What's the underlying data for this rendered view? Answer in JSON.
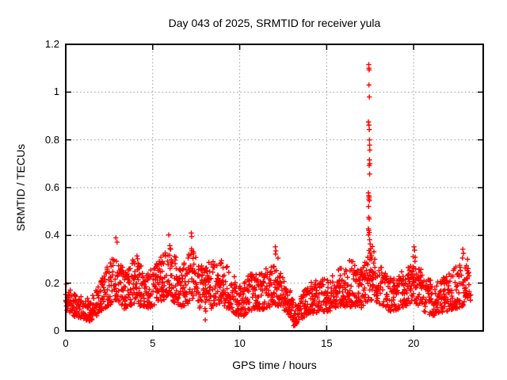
{
  "colors": {
    "marker": "#ff0000",
    "grid": "#9a9a9a",
    "axis": "#000000",
    "text": "#000000",
    "background": "#ffffff"
  },
  "chart_data": {
    "type": "scatter",
    "marker": "plus",
    "title": "Day 043 of 2025, SRMTID for receiver yula",
    "xlabel": "GPS time / hours",
    "ylabel": "SRMTID / TECUs",
    "series_name": "SRMTID",
    "xlim": [
      0,
      24
    ],
    "ylim": [
      0,
      1.2
    ],
    "xticks": [
      0,
      5,
      10,
      15,
      20
    ],
    "xtick_labels": [
      "0",
      "5",
      "10",
      "15",
      "20"
    ],
    "yticks": [
      0,
      0.2,
      0.4,
      0.6,
      0.8,
      1,
      1.2
    ],
    "ytick_labels": [
      "0",
      "0.2",
      "0.4",
      "0.6",
      "0.8",
      "1",
      "1.2"
    ],
    "grid": true,
    "legend": "none",
    "t_start": 0,
    "t_end": 23.3,
    "epoch_step": 0.025,
    "seed": 2025043,
    "band_envelope": [
      [
        0.0,
        0.08,
        0.2
      ],
      [
        0.4,
        0.06,
        0.16
      ],
      [
        0.9,
        0.05,
        0.15
      ],
      [
        1.4,
        0.04,
        0.14
      ],
      [
        1.9,
        0.07,
        0.2
      ],
      [
        2.4,
        0.1,
        0.27
      ],
      [
        2.9,
        0.13,
        0.33
      ],
      [
        3.2,
        0.1,
        0.28
      ],
      [
        3.5,
        0.08,
        0.24
      ],
      [
        3.8,
        0.11,
        0.3
      ],
      [
        4.1,
        0.11,
        0.32
      ],
      [
        4.5,
        0.09,
        0.24
      ],
      [
        4.9,
        0.1,
        0.26
      ],
      [
        5.4,
        0.12,
        0.3
      ],
      [
        5.9,
        0.14,
        0.38
      ],
      [
        6.2,
        0.12,
        0.33
      ],
      [
        6.6,
        0.1,
        0.27
      ],
      [
        7.0,
        0.11,
        0.3
      ],
      [
        7.25,
        0.12,
        0.38
      ],
      [
        7.6,
        0.1,
        0.27
      ],
      [
        8.1,
        0.08,
        0.28
      ],
      [
        8.65,
        0.11,
        0.33
      ],
      [
        9.1,
        0.1,
        0.29
      ],
      [
        9.6,
        0.08,
        0.24
      ],
      [
        10.1,
        0.05,
        0.18
      ],
      [
        10.55,
        0.08,
        0.24
      ],
      [
        11.0,
        0.09,
        0.24
      ],
      [
        11.5,
        0.09,
        0.26
      ],
      [
        12.0,
        0.11,
        0.29
      ],
      [
        12.5,
        0.09,
        0.23
      ],
      [
        12.9,
        0.06,
        0.17
      ],
      [
        13.15,
        0.02,
        0.12
      ],
      [
        13.6,
        0.05,
        0.16
      ],
      [
        14.1,
        0.07,
        0.21
      ],
      [
        14.6,
        0.08,
        0.22
      ],
      [
        15.1,
        0.08,
        0.23
      ],
      [
        15.6,
        0.1,
        0.25
      ],
      [
        16.1,
        0.1,
        0.29
      ],
      [
        16.5,
        0.1,
        0.3
      ],
      [
        16.9,
        0.09,
        0.25
      ],
      [
        17.2,
        0.11,
        0.3
      ],
      [
        17.45,
        0.13,
        0.4
      ],
      [
        17.8,
        0.12,
        0.32
      ],
      [
        18.2,
        0.1,
        0.26
      ],
      [
        18.7,
        0.08,
        0.22
      ],
      [
        19.2,
        0.09,
        0.24
      ],
      [
        19.7,
        0.11,
        0.28
      ],
      [
        20.0,
        0.12,
        0.33
      ],
      [
        20.3,
        0.1,
        0.28
      ],
      [
        20.8,
        0.07,
        0.22
      ],
      [
        21.3,
        0.06,
        0.2
      ],
      [
        21.8,
        0.08,
        0.23
      ],
      [
        22.3,
        0.09,
        0.27
      ],
      [
        22.8,
        0.1,
        0.32
      ],
      [
        23.05,
        0.12,
        0.3
      ],
      [
        23.3,
        0.13,
        0.28
      ]
    ],
    "spike_points": [
      [
        17.42,
        1.115
      ],
      [
        17.43,
        1.1
      ],
      [
        17.44,
        1.093
      ],
      [
        17.43,
        1.03
      ],
      [
        17.45,
        0.98
      ],
      [
        17.4,
        0.875
      ],
      [
        17.43,
        0.862
      ],
      [
        17.45,
        0.843
      ],
      [
        17.46,
        0.8
      ],
      [
        17.47,
        0.778
      ],
      [
        17.48,
        0.757
      ],
      [
        17.46,
        0.716
      ],
      [
        17.48,
        0.7
      ],
      [
        17.44,
        0.693
      ],
      [
        17.47,
        0.657
      ],
      [
        17.4,
        0.578
      ],
      [
        17.42,
        0.566
      ],
      [
        17.44,
        0.56
      ],
      [
        17.43,
        0.552
      ],
      [
        17.45,
        0.545
      ],
      [
        17.41,
        0.521
      ],
      [
        17.42,
        0.476
      ],
      [
        17.44,
        0.469
      ],
      [
        17.4,
        0.428
      ],
      [
        17.42,
        0.421
      ],
      [
        17.45,
        0.412
      ],
      [
        17.41,
        0.402
      ],
      [
        17.47,
        0.382
      ],
      [
        17.5,
        0.364
      ],
      [
        17.53,
        0.345
      ]
    ],
    "outlier_points": [
      [
        2.88,
        0.39
      ],
      [
        2.95,
        0.372
      ],
      [
        5.92,
        0.402
      ],
      [
        7.22,
        0.41
      ],
      [
        7.24,
        0.395
      ],
      [
        8.02,
        0.046
      ],
      [
        12.05,
        0.352
      ],
      [
        12.08,
        0.335
      ],
      [
        12.06,
        0.322
      ],
      [
        12.2,
        0.305
      ],
      [
        13.1,
        0.022
      ],
      [
        20.02,
        0.352
      ],
      [
        20.05,
        0.338
      ],
      [
        22.83,
        0.342
      ],
      [
        22.86,
        0.325
      ],
      [
        23.1,
        0.3
      ]
    ]
  }
}
